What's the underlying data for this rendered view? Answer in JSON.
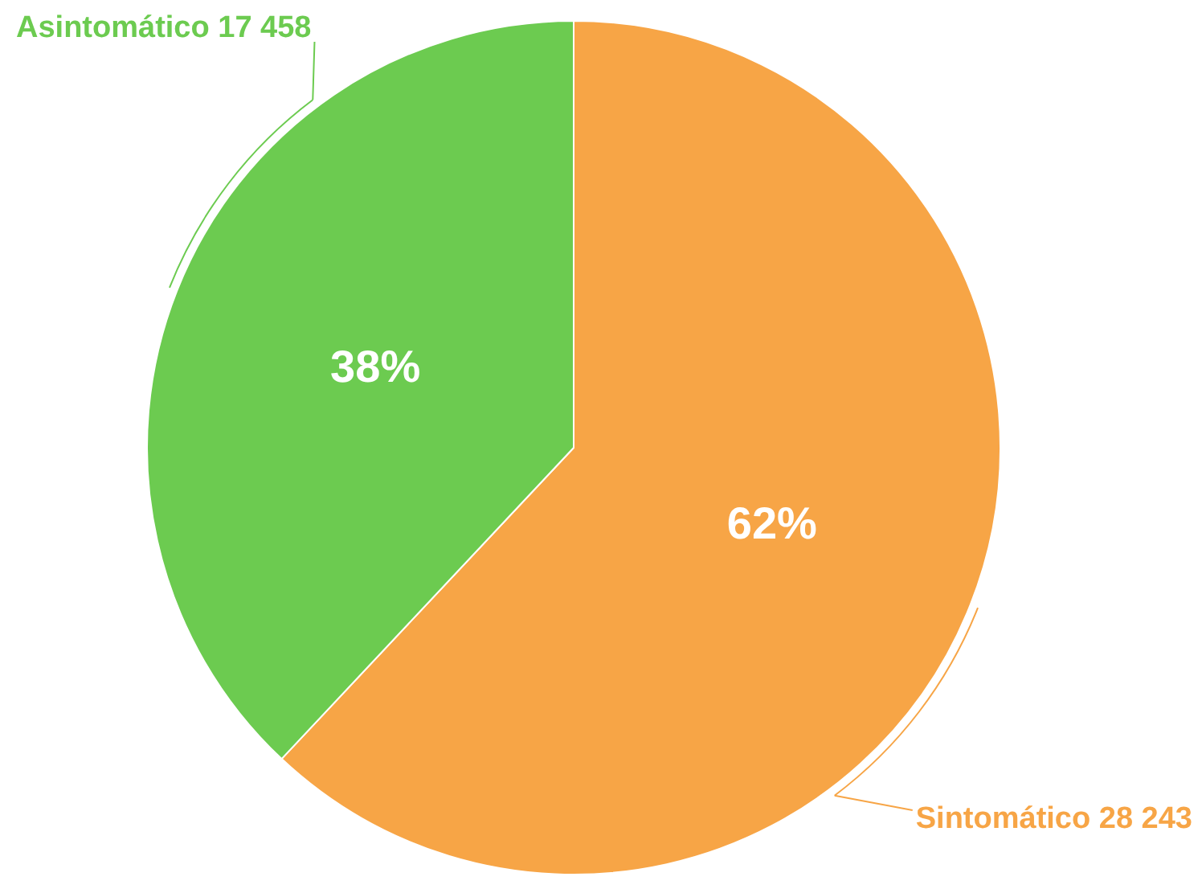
{
  "chart_data": {
    "type": "pie",
    "categories": [
      "Sintomático 28 243",
      "Asintomático 17 458"
    ],
    "values": [
      62,
      38
    ],
    "colors": [
      "#f7a546",
      "#6ccb50"
    ],
    "value_labels": [
      "62%",
      "38%"
    ],
    "legend": false
  }
}
